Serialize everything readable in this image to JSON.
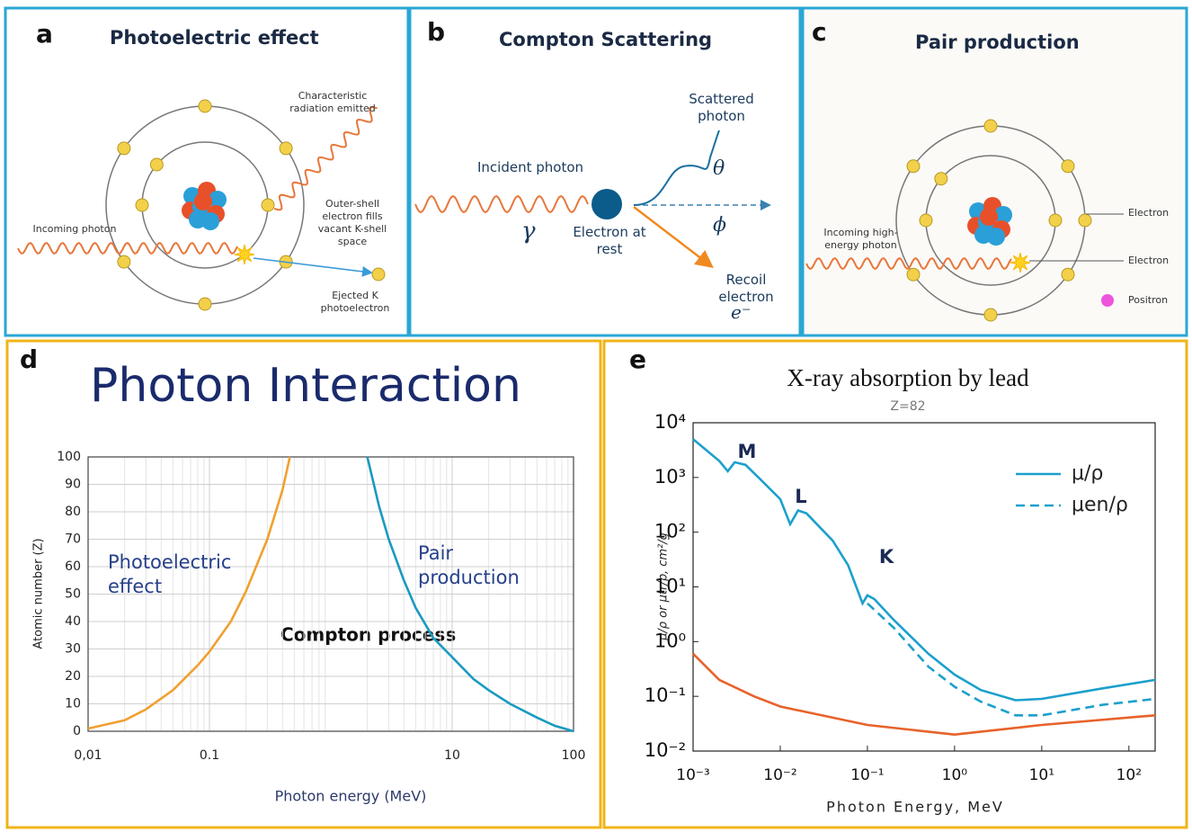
{
  "panels": [
    {
      "letter": "a",
      "title": "Photoelectric effect",
      "labels": [
        "Characteristic radiation emitted",
        "Outer-shell electron fills vacant K-shell space",
        "Incoming photon",
        "Ejected K photoelectron"
      ]
    },
    {
      "letter": "b",
      "title": "Compton Scattering",
      "labels": [
        "Incident photon",
        "γ",
        "Electron at rest",
        "Scattered photon",
        "θ",
        "ϕ",
        "Recoil electron",
        "e⁻"
      ]
    },
    {
      "letter": "c",
      "title": "Pair production",
      "labels": [
        "Incoming high-energy photon",
        "Electron",
        "Electron",
        "Positron"
      ]
    }
  ],
  "chart_data": [
    {
      "panel": "d",
      "type": "line",
      "title": "Photon Interaction",
      "x_label": "Photon energy (MeV)",
      "y_label": "Atomic number (Z)",
      "annotations": [
        "Photoelectric effect",
        "Compton process",
        "Pair production"
      ],
      "xscale": "log",
      "xlim": [
        0.01,
        100
      ],
      "ylim": [
        0,
        100
      ],
      "xticks": [
        {
          "value": 0.01,
          "label": "0,01"
        },
        0.1,
        10,
        100
      ],
      "yticks": [
        0,
        10,
        20,
        30,
        40,
        50,
        60,
        70,
        80,
        90,
        100
      ],
      "grid": true,
      "series": [
        {
          "color": "#f0a030",
          "x": [
            0.01,
            0.02,
            0.03,
            0.05,
            0.08,
            0.1,
            0.15,
            0.2,
            0.3,
            0.4,
            0.46
          ],
          "values": [
            1,
            4,
            8,
            15,
            24,
            29,
            40,
            51,
            70,
            88,
            100
          ]
        },
        {
          "color": "#1a9ac0",
          "x": [
            2,
            2.5,
            3,
            4,
            5,
            7,
            10,
            15,
            20,
            30,
            50,
            70,
            100
          ],
          "values": [
            100,
            82,
            70,
            55,
            45,
            34,
            27,
            19,
            15,
            10,
            5,
            2,
            0
          ]
        }
      ]
    },
    {
      "panel": "e",
      "type": "line",
      "title": "X-ray absorption by lead",
      "subtitle": "Z=82",
      "x_label": "Photon Energy, MeV",
      "y_label": "μ/ρ or μtr/ρ, cm²/g",
      "annotations": [
        "M",
        "L",
        "K"
      ],
      "xscale": "log",
      "yscale": "log",
      "xlim": [
        0.001,
        200
      ],
      "ylim": [
        0.01,
        10000
      ],
      "xticks": [
        {
          "value": 0.001,
          "label": "10⁻³"
        },
        {
          "value": 0.01,
          "label": "10⁻²"
        },
        {
          "value": 0.1,
          "label": "10⁻¹"
        },
        {
          "value": 1,
          "label": "10⁰"
        },
        {
          "value": 10,
          "label": "10¹"
        },
        {
          "value": 100,
          "label": "10²"
        }
      ],
      "yticks": [
        {
          "value": 0.01,
          "label": "10⁻²"
        },
        {
          "value": 0.1,
          "label": "10⁻¹"
        },
        {
          "value": 1,
          "label": "10⁰"
        },
        {
          "value": 10,
          "label": "10¹"
        },
        {
          "value": 100,
          "label": "10²"
        },
        {
          "value": 1000,
          "label": "10³"
        },
        {
          "value": 10000,
          "label": "10⁴"
        }
      ],
      "grid": false,
      "series": [
        {
          "name": "μ/ρ",
          "color": "#1ca0cc",
          "linestyle": "solid",
          "x": [
            0.001,
            0.002,
            0.0025,
            0.003,
            0.004,
            0.006,
            0.01,
            0.013,
            0.016,
            0.02,
            0.04,
            0.06,
            0.088,
            0.1,
            0.12,
            0.2,
            0.5,
            1,
            2,
            5,
            10,
            50,
            200
          ],
          "values": [
            5000,
            2000,
            1300,
            1900,
            1700,
            900,
            400,
            140,
            250,
            220,
            70,
            25,
            5,
            7,
            6,
            2.5,
            0.6,
            0.25,
            0.13,
            0.085,
            0.09,
            0.14,
            0.2
          ]
        },
        {
          "name": "μen/ρ",
          "color": "#1ca0cc",
          "linestyle": "dashed",
          "x": [
            0.1,
            0.2,
            0.5,
            1,
            2,
            5,
            10,
            50,
            200
          ],
          "values": [
            5,
            1.8,
            0.35,
            0.15,
            0.08,
            0.045,
            0.045,
            0.07,
            0.09
          ]
        },
        {
          "color": "#e8622a",
          "linestyle": "solid",
          "x": [
            0.001,
            0.002,
            0.005,
            0.01,
            0.1,
            1,
            10,
            200
          ],
          "values": [
            0.6,
            0.2,
            0.1,
            0.065,
            0.03,
            0.02,
            0.03,
            0.045
          ]
        }
      ]
    }
  ]
}
